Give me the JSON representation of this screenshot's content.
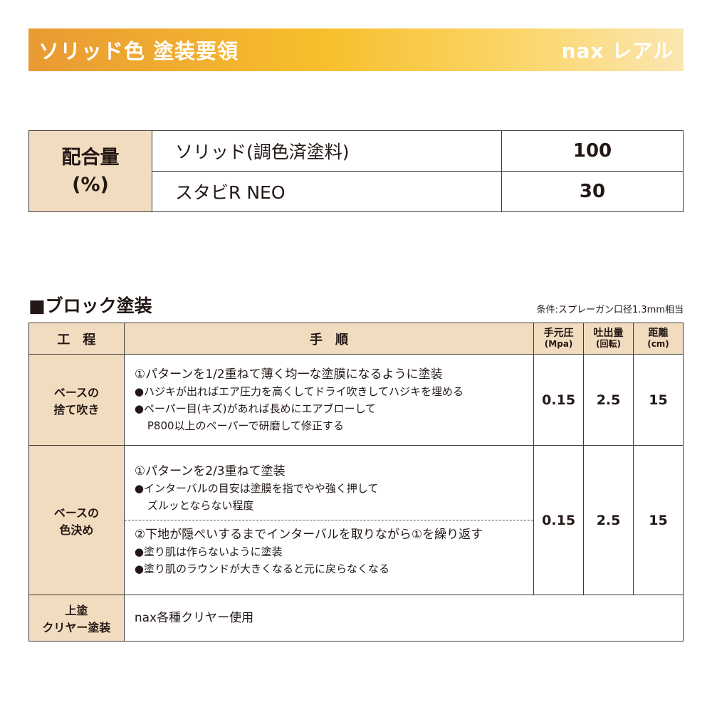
{
  "banner": {
    "title": "ソリッド色 塗装要領",
    "logo": "nax レアル"
  },
  "mix": {
    "label_line1": "配合量",
    "label_line2": "(%)",
    "rows": [
      {
        "name": "ソリッド(調色済塗料)",
        "value": "100"
      },
      {
        "name": "スタビR NEO",
        "value": "30"
      }
    ]
  },
  "section": {
    "title": "■ブロック塗装",
    "condition": "条件:スプレーガン口径1.3mm相当"
  },
  "table": {
    "headers": {
      "process": "工　程",
      "procedure": "手　順",
      "pressure": "手元圧",
      "pressure_unit": "(Mpa)",
      "output": "吐出量",
      "output_unit": "(回転)",
      "distance": "距離",
      "distance_unit": "(cm)"
    },
    "rows": [
      {
        "process1": "ベースの",
        "process2": "捨て吹き",
        "main": "①パターンを1/2重ねて薄く均一な塗膜になるように塗装",
        "b1": "●ハジキが出ればエア圧力を高くしてドライ吹きしてハジキを埋める",
        "b2": "●ペーパー目(キズ)があれば長めにエアブローして",
        "b3": "P800以上のペーパーで研磨して修正する",
        "pressure": "0.15",
        "output": "2.5",
        "distance": "15"
      },
      {
        "process1": "ベースの",
        "process2": "色決め",
        "main": "①パターンを2/3重ねて塗装",
        "b1": "●インターバルの目安は塗膜を指でやや強く押して",
        "b2": "ズルッとならない程度",
        "main2": "②下地が隠ぺいするまでインターバルを取りながら①を繰り返す",
        "b3": "●塗り肌は作らないように塗装",
        "b4": "●塗り肌のラウンドが大きくなると元に戻らなくなる",
        "pressure": "0.15",
        "output": "2.5",
        "distance": "15"
      },
      {
        "process1": "上塗",
        "process2": "クリヤー塗装",
        "main": "nax各種クリヤー使用"
      }
    ]
  },
  "colors": {
    "label_bg": "#f2dcc0",
    "banner_start": "#e99a33",
    "banner_end": "#fbe6b2"
  }
}
